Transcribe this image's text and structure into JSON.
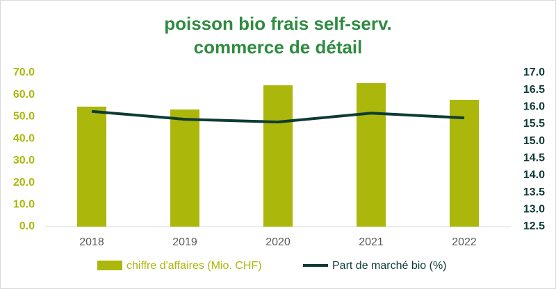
{
  "chart_data": {
    "type": "bar-line",
    "title": [
      "poisson bio frais self-serv.",
      "commerce de détail"
    ],
    "categories": [
      "2018",
      "2019",
      "2020",
      "2021",
      "2022"
    ],
    "series": [
      {
        "name": "chiffre d'affaires (Mio. CHF)",
        "type": "bar",
        "color": "#abb70a",
        "values": [
          54.6,
          53.3,
          64.3,
          65.3,
          57.7
        ]
      },
      {
        "name": "Part de marché bio (%)",
        "type": "line",
        "axis": "y2",
        "color": "#0e3b35",
        "values": [
          15.87,
          15.64,
          15.56,
          15.82,
          15.68
        ]
      }
    ],
    "ylim": [
      0,
      70
    ],
    "yticks": [
      {
        "value": 0,
        "label": "0.0"
      },
      {
        "value": 10,
        "label": "10.0"
      },
      {
        "value": 20,
        "label": "20.0"
      },
      {
        "value": 30,
        "label": "30.0"
      },
      {
        "value": 40,
        "label": "40.0"
      },
      {
        "value": 50,
        "label": "50.0"
      },
      {
        "value": 60,
        "label": "60.0"
      },
      {
        "value": 70,
        "label": "70.0"
      }
    ],
    "y2lim": [
      12.5,
      17.0
    ],
    "y2ticks": [
      12.5,
      {
        "value": 13,
        "label": "13.0"
      },
      13.5,
      {
        "value": 14,
        "label": "14.0"
      },
      14.5,
      {
        "value": 15,
        "label": "15.0"
      },
      15.5,
      {
        "value": 16,
        "label": "16.0"
      },
      16.5,
      {
        "value": 17,
        "label": "17.0"
      }
    ],
    "legend": "bottom"
  }
}
